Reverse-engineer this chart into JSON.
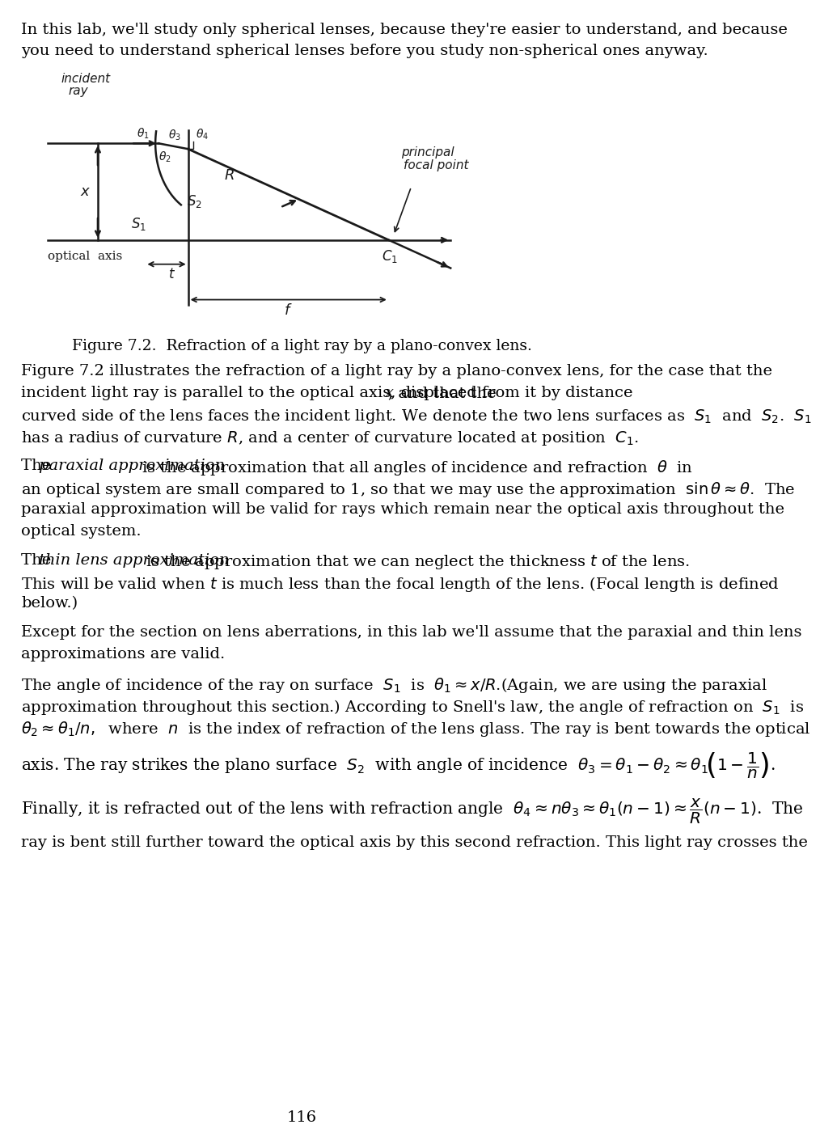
{
  "bg_color": "#ffffff",
  "page_number": "116",
  "ink": "#1a1a1a",
  "fs": 14.0,
  "ml": 22,
  "fig_caption": "Figure 7.2.  Refraction of a light ray by a plano-convex lens.",
  "para1_l1": "In this lab, we'll study only spherical lenses, because they're easier to understand, and because",
  "para1_l2": "you need to understand spherical lenses before you study non-spherical ones anyway.",
  "para2_l1": "Figure 7.2 illustrates the refraction of a light ray by a plano-convex lens, for the case that the",
  "para2_l2a": "incident light ray is parallel to the optical axis, displaced from it by distance ",
  "para2_l2b": "x",
  "para2_l2c": ", and that the",
  "para2_l3a": "curved side of the lens faces the incident light. We denote the two lens surfaces as  ",
  "para2_l4": "has a radius of curvature ",
  "para3_l1a": "The ",
  "para3_l1b": "paraxial approximation",
  "para3_l1c": " is the approximation that all angles of incidence and refraction  $\\theta$  in",
  "para3_l2": "an optical system are small compared to 1, so that we may use the approximation  $\\sin\\theta \\approx \\theta$.  The",
  "para3_l3": "paraxial approximation will be valid for rays which remain near the optical axis throughout the",
  "para3_l4": "optical system.",
  "para4_l1a": "The ",
  "para4_l1b": "thin lens approximation",
  "para4_l1c": " is the approximation that we can neglect the thickness ",
  "para4_l1d": "t",
  "para4_l1e": " of the lens.",
  "para4_l2a": "This will be valid when ",
  "para4_l2b": "t",
  "para4_l2c": " is much less than the focal length of the lens. (Focal length is defined",
  "para4_l3": "below.)",
  "para5_l1": "Except for the section on lens aberrations, in this lab we'll assume that the paraxial and thin lens",
  "para5_l2": "approximations are valid.",
  "para6_l1": "The angle of incidence of the ray on surface  $S_1$  is  $\\theta_1 \\approx x / R$.(Again, we are using the paraxial",
  "para6_l2": "approximation throughout this section.) According to Snell's law, the angle of refraction on  $S_1$  is",
  "para6_l3": "$\\theta_2 \\approx \\theta_1 / n,$  where  $n$  is the index of refraction of the lens glass. The ray is bent towards the optical",
  "para6_l4": "axis. The ray strikes the plano surface  $S_2$  with angle of incidence  $\\theta_3 = \\theta_1 - \\theta_2 \\approx \\theta_1\\!\\left(1 - \\dfrac{1}{n}\\right)$.",
  "para7_l1": "Finally, it is refracted out of the lens with refraction angle  $\\theta_4 \\approx n\\theta_3 \\approx \\theta_1\\left(n-1\\right) \\approx \\dfrac{x}{R}\\left(n-1\\right)$.  The",
  "para7_l2": "ray is bent still further toward the optical axis by this second refraction. This light ray crosses the"
}
